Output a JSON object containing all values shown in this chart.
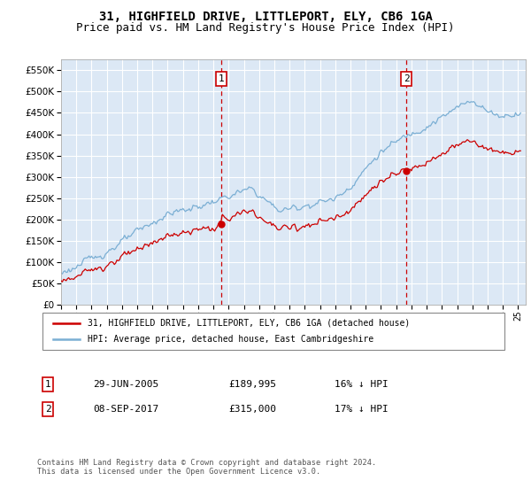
{
  "title": "31, HIGHFIELD DRIVE, LITTLEPORT, ELY, CB6 1GA",
  "subtitle": "Price paid vs. HM Land Registry's House Price Index (HPI)",
  "ylim": [
    0,
    575000
  ],
  "yticks": [
    0,
    50000,
    100000,
    150000,
    200000,
    250000,
    300000,
    350000,
    400000,
    450000,
    500000,
    550000
  ],
  "xlim_start": 1995.0,
  "xlim_end": 2025.5,
  "fig_bg_color": "#ffffff",
  "plot_bg_color": "#dce8f5",
  "grid_color": "#ffffff",
  "hpi_color": "#7bafd4",
  "price_color": "#cc0000",
  "ann1_x": 2005.5,
  "ann1_y": 189995,
  "ann2_x": 2017.67,
  "ann2_y": 315000,
  "legend_label_price": "31, HIGHFIELD DRIVE, LITTLEPORT, ELY, CB6 1GA (detached house)",
  "legend_label_hpi": "HPI: Average price, detached house, East Cambridgeshire",
  "table_row1": [
    "1",
    "29-JUN-2005",
    "£189,995",
    "16% ↓ HPI"
  ],
  "table_row2": [
    "2",
    "08-SEP-2017",
    "£315,000",
    "17% ↓ HPI"
  ],
  "footer": "Contains HM Land Registry data © Crown copyright and database right 2024.\nThis data is licensed under the Open Government Licence v3.0.",
  "title_fontsize": 10,
  "subtitle_fontsize": 9
}
